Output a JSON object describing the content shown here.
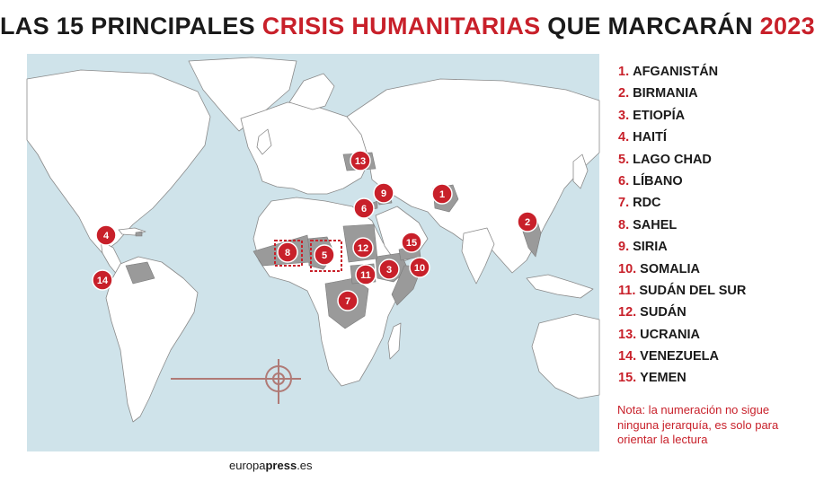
{
  "title": {
    "part1": "LAS 15 PRINCIPALES ",
    "part2": "CRISIS HUMANITARIAS",
    "part3": " QUE MARCARÁN ",
    "part4": "2023"
  },
  "legend": [
    {
      "num": "1.",
      "name": "AFGANISTÁN"
    },
    {
      "num": "2.",
      "name": "BIRMANIA"
    },
    {
      "num": "3.",
      "name": "ETIOPÍA"
    },
    {
      "num": "4.",
      "name": "HAITÍ"
    },
    {
      "num": "5.",
      "name": "LAGO CHAD"
    },
    {
      "num": "6.",
      "name": "LÍBANO"
    },
    {
      "num": "7.",
      "name": "RDC"
    },
    {
      "num": "8.",
      "name": "SAHEL"
    },
    {
      "num": "9.",
      "name": "SIRIA"
    },
    {
      "num": "10.",
      "name": "SOMALIA"
    },
    {
      "num": "11.",
      "name": "SUDÁN DEL SUR"
    },
    {
      "num": "12.",
      "name": "SUDÁN"
    },
    {
      "num": "13.",
      "name": "UCRANIA"
    },
    {
      "num": "14.",
      "name": "VENEZUELA"
    },
    {
      "num": "15.",
      "name": "YEMEN"
    }
  ],
  "markers": {
    "m1": "1",
    "m2": "2",
    "m3": "3",
    "m4": "4",
    "m5": "5",
    "m6": "6",
    "m7": "7",
    "m8": "8",
    "m9": "9",
    "m10": "10",
    "m11": "11",
    "m12": "12",
    "m13": "13",
    "m14": "14",
    "m15": "15"
  },
  "note": "Nota: la numeración no sigue ninguna jerarquía, es solo para orientar la lectura",
  "source": {
    "part1": "europa",
    "part2": "press",
    "part3": ".es"
  },
  "colors": {
    "accent": "#c8202a",
    "ocean": "#cfe3ea",
    "land": "#ffffff",
    "highlight": "#9a9a9a"
  }
}
